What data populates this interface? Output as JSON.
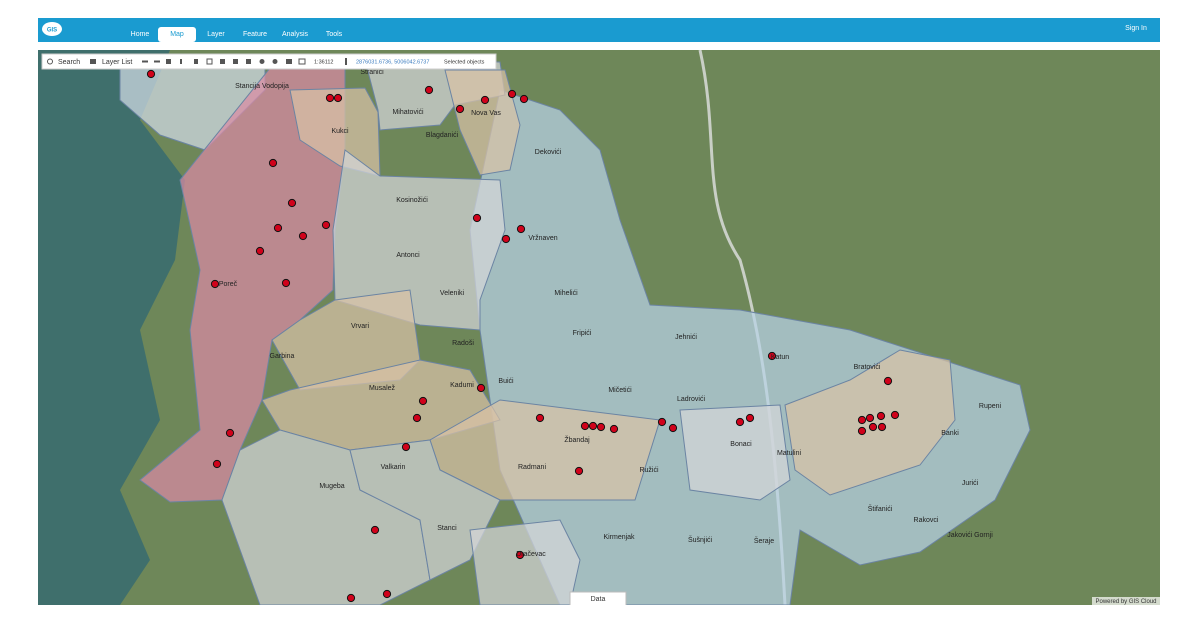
{
  "nav": {
    "logo": "GIS",
    "items": [
      "Home",
      "Map",
      "Layer",
      "Feature",
      "Analysis",
      "Tools"
    ],
    "sign_in": "Sign In"
  },
  "toolbar": {
    "search": "Search",
    "layer_list": "Layer List",
    "scale": "1:36112",
    "coordinates": "2876031.6736, 5006042.6737",
    "selected_objects": "Selected objects"
  },
  "map": {
    "labels": [
      "Stancija Vodopija",
      "Stranići",
      "Mihatovići",
      "Kukci",
      "Blagdanići",
      "Nova Vas",
      "Dekovići",
      "Kosinožići",
      "Vržnaven",
      "Antonci",
      "Veleniki",
      "Mihelići",
      "Poreč",
      "Fripići",
      "Vrvari",
      "Radoši",
      "Garbina",
      "Jehnići",
      "Katun",
      "Bratovići",
      "Musalež",
      "Kadumi",
      "Buići",
      "Mičetići",
      "Ladrovići",
      "Rupeni",
      "Žbandaj",
      "Bonaci",
      "Banki",
      "Matulini",
      "Jurići",
      "Radmani",
      "Ružići",
      "Valkarin",
      "Mugeba",
      "Štifanići",
      "Rakovci",
      "Jakovići Gornji",
      "Stanci",
      "Kirmenjak",
      "Šušnjići",
      "Šeraje",
      "Dračevac"
    ],
    "data_tab": "Data",
    "attribution": "Powered by GIS Cloud"
  }
}
